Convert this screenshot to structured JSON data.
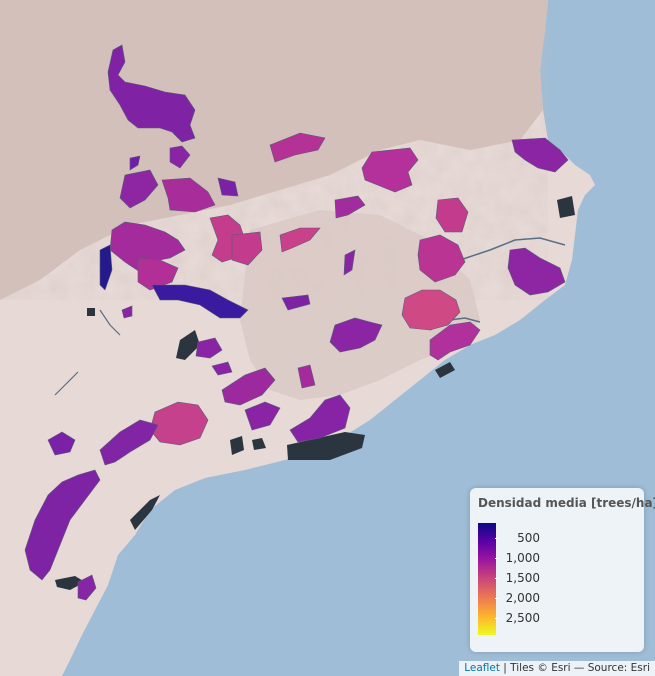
{
  "legend": {
    "title": "Densidad media [trees/ha]",
    "ticks": [
      "500",
      "1,000",
      "1,500",
      "2,000",
      "2,500"
    ],
    "colors": [
      "#0d0887",
      "#5c01a6",
      "#9c179e",
      "#cc4778",
      "#ed7953",
      "#fdb42f",
      "#f0f921"
    ]
  },
  "attribution": {
    "link": "Leaflet",
    "text": "| Tiles © Esri — Source: Esri"
  },
  "colors": {
    "sea": "#9fbdd6",
    "land": "#e6d9d6",
    "relief": "#bfa8a2",
    "no_data": "#2b3540"
  }
}
